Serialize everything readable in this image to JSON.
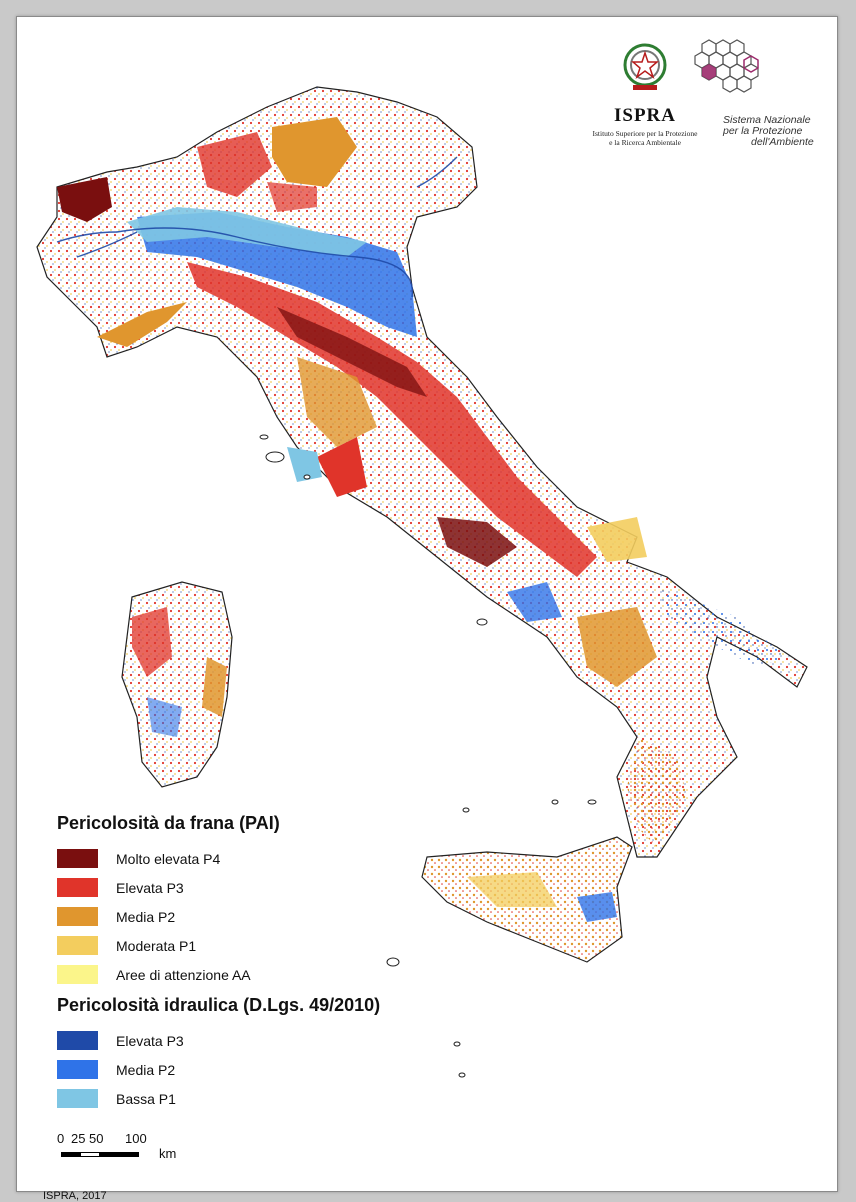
{
  "colors": {
    "frana": [
      "#7a0f0f",
      "#e0342a",
      "#e0962e",
      "#f3cd5e",
      "#fbf58a"
    ],
    "idraulica": [
      "#1f4aa8",
      "#2f73e8",
      "#7fc6e4"
    ],
    "coast": "#222222"
  },
  "logos": {
    "ispra_icon": "italian-emblem-icon",
    "ispra_name": "ISPRA",
    "ispra_sub_1": "Istituto Superiore per la Protezione",
    "ispra_sub_2": "e la Ricerca Ambientale",
    "snpa_icon": "hexagon-network-icon",
    "snpa_line_1": "Sistema Nazionale",
    "snpa_line_2": "per la Protezione",
    "snpa_line_3": "dell'Ambiente"
  },
  "legend": {
    "frana_title": "Pericolosità da frana (PAI)",
    "frana_items": [
      {
        "label": "Molto elevata P4"
      },
      {
        "label": "Elevata P3"
      },
      {
        "label": "Media P2"
      },
      {
        "label": "Moderata P1"
      },
      {
        "label": "Aree di attenzione AA"
      }
    ],
    "idraulica_title": "Pericolosità idraulica (D.Lgs. 49/2010)",
    "idraulica_items": [
      {
        "label": "Elevata P3"
      },
      {
        "label": "Media P2"
      },
      {
        "label": "Bassa P1"
      }
    ]
  },
  "scale": {
    "tick_0": "0",
    "tick_25": "25",
    "tick_50": "50",
    "tick_100": "100",
    "unit": "km"
  },
  "credit": "ISPRA, 2017"
}
